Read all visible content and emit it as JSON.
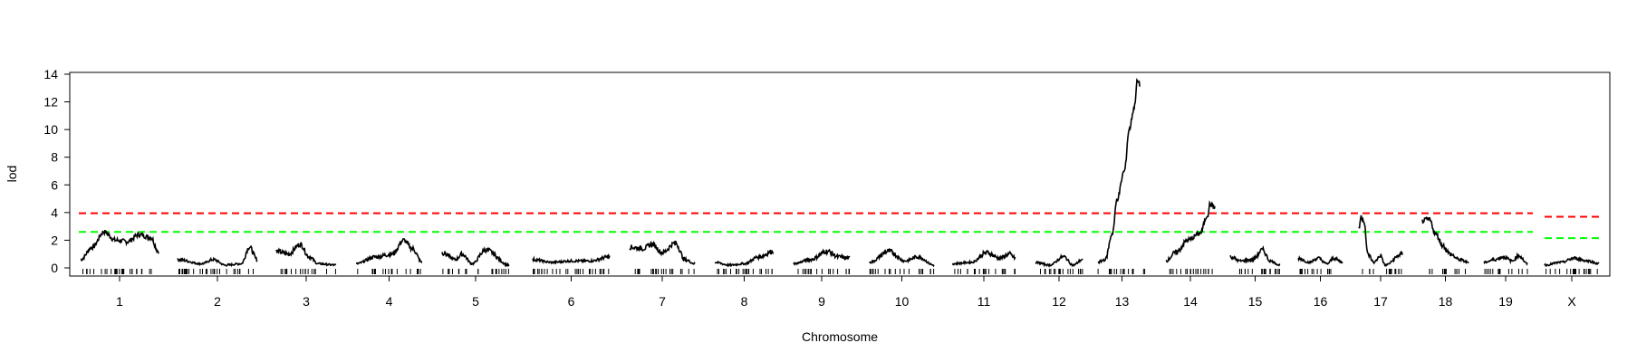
{
  "chart_data": {
    "type": "line",
    "title": "",
    "xlabel": "Chromosome",
    "ylabel": "lod",
    "ylim": [
      0,
      14
    ],
    "y_ticks": [
      0,
      2,
      4,
      6,
      8,
      10,
      12,
      14
    ],
    "grid": false,
    "legend": "none",
    "colors": {
      "lod_curve": "#000000",
      "threshold_high": "#ff0000",
      "threshold_low": "#00ff00"
    },
    "thresholds": [
      {
        "level": "high",
        "autosome": 3.95,
        "x": 3.7
      },
      {
        "level": "low",
        "autosome": 2.6,
        "x": 2.15
      }
    ],
    "chromosomes": [
      {
        "label": "1",
        "profile": [
          [
            0,
            0.6
          ],
          [
            0.15,
            1.5
          ],
          [
            0.3,
            2.6
          ],
          [
            0.45,
            2.0
          ],
          [
            0.6,
            1.9
          ],
          [
            0.75,
            2.4
          ],
          [
            0.9,
            2.2
          ],
          [
            1,
            1.2
          ]
        ],
        "max_lod": 2.7
      },
      {
        "label": "2",
        "profile": [
          [
            0,
            0.6
          ],
          [
            0.3,
            0.3
          ],
          [
            0.45,
            0.6
          ],
          [
            0.6,
            0.2
          ],
          [
            0.8,
            0.3
          ],
          [
            0.9,
            1.5
          ],
          [
            1,
            0.6
          ]
        ],
        "max_lod": 1.5
      },
      {
        "label": "3",
        "profile": [
          [
            0,
            1.2
          ],
          [
            0.2,
            1.0
          ],
          [
            0.4,
            1.7
          ],
          [
            0.55,
            0.8
          ],
          [
            0.7,
            0.3
          ],
          [
            1,
            0.2
          ]
        ],
        "max_lod": 1.7
      },
      {
        "label": "4",
        "profile": [
          [
            0,
            0.3
          ],
          [
            0.3,
            0.8
          ],
          [
            0.55,
            1.0
          ],
          [
            0.72,
            2.0
          ],
          [
            0.85,
            1.4
          ],
          [
            1,
            0.4
          ]
        ],
        "max_lod": 2.0
      },
      {
        "label": "5",
        "profile": [
          [
            0,
            1.1
          ],
          [
            0.2,
            0.6
          ],
          [
            0.3,
            1.0
          ],
          [
            0.45,
            0.3
          ],
          [
            0.65,
            1.3
          ],
          [
            1,
            0.2
          ]
        ],
        "max_lod": 1.3
      },
      {
        "label": "6",
        "profile": [
          [
            0,
            0.6
          ],
          [
            0.25,
            0.4
          ],
          [
            0.5,
            0.5
          ],
          [
            0.75,
            0.5
          ],
          [
            1,
            0.8
          ]
        ],
        "max_lod": 0.8
      },
      {
        "label": "7",
        "profile": [
          [
            0,
            1.5
          ],
          [
            0.2,
            1.4
          ],
          [
            0.35,
            1.7
          ],
          [
            0.5,
            1.1
          ],
          [
            0.7,
            1.8
          ],
          [
            0.85,
            0.6
          ],
          [
            1,
            0.3
          ]
        ],
        "max_lod": 1.8
      },
      {
        "label": "8",
        "profile": [
          [
            0,
            0.4
          ],
          [
            0.25,
            0.2
          ],
          [
            0.5,
            0.3
          ],
          [
            0.75,
            0.8
          ],
          [
            1,
            1.2
          ]
        ],
        "max_lod": 1.2
      },
      {
        "label": "9",
        "profile": [
          [
            0,
            0.3
          ],
          [
            0.3,
            0.6
          ],
          [
            0.6,
            1.2
          ],
          [
            0.8,
            0.8
          ],
          [
            1,
            0.7
          ]
        ],
        "max_lod": 1.2
      },
      {
        "label": "10",
        "profile": [
          [
            0,
            0.4
          ],
          [
            0.3,
            1.2
          ],
          [
            0.55,
            0.5
          ],
          [
            0.75,
            0.8
          ],
          [
            1,
            0.2
          ]
        ],
        "max_lod": 1.2
      },
      {
        "label": "11",
        "profile": [
          [
            0,
            0.3
          ],
          [
            0.3,
            0.4
          ],
          [
            0.55,
            1.1
          ],
          [
            0.75,
            0.7
          ],
          [
            0.9,
            1.0
          ],
          [
            1,
            0.7
          ]
        ],
        "max_lod": 1.1
      },
      {
        "label": "12",
        "profile": [
          [
            0,
            0.4
          ],
          [
            0.3,
            0.2
          ],
          [
            0.6,
            0.8
          ],
          [
            0.8,
            0.2
          ],
          [
            1,
            0.6
          ]
        ],
        "max_lod": 0.8
      },
      {
        "label": "13",
        "profile": [
          [
            0,
            0.4
          ],
          [
            0.15,
            0.6
          ],
          [
            0.3,
            2.5
          ],
          [
            0.4,
            5.0
          ],
          [
            0.55,
            7.0
          ],
          [
            0.65,
            10.0
          ],
          [
            0.75,
            11.5
          ],
          [
            0.82,
            13.5
          ],
          [
            0.88,
            13.2
          ]
        ],
        "max_lod": 13.6
      },
      {
        "label": "14",
        "profile": [
          [
            0,
            0.5
          ],
          [
            0.2,
            1.1
          ],
          [
            0.45,
            2.0
          ],
          [
            0.7,
            2.5
          ],
          [
            0.85,
            3.8
          ],
          [
            0.9,
            4.6
          ],
          [
            1,
            4.4
          ]
        ],
        "max_lod": 4.6
      },
      {
        "label": "15",
        "profile": [
          [
            0,
            0.8
          ],
          [
            0.2,
            0.5
          ],
          [
            0.45,
            0.6
          ],
          [
            0.65,
            1.3
          ],
          [
            0.8,
            0.5
          ],
          [
            1,
            0.2
          ]
        ],
        "max_lod": 1.3
      },
      {
        "label": "16",
        "profile": [
          [
            0,
            0.7
          ],
          [
            0.25,
            0.4
          ],
          [
            0.45,
            0.7
          ],
          [
            0.65,
            0.3
          ],
          [
            0.8,
            0.7
          ],
          [
            1,
            0.4
          ]
        ],
        "max_lod": 0.7
      },
      {
        "label": "17",
        "profile": [
          [
            0,
            2.8
          ],
          [
            0.05,
            3.7
          ],
          [
            0.12,
            3.4
          ],
          [
            0.2,
            1.0
          ],
          [
            0.35,
            0.4
          ],
          [
            0.5,
            0.9
          ],
          [
            0.6,
            0.2
          ],
          [
            1,
            1.0
          ]
        ],
        "max_lod": 3.7
      },
      {
        "label": "18",
        "profile": [
          [
            0,
            3.4
          ],
          [
            0.15,
            3.5
          ],
          [
            0.3,
            2.4
          ],
          [
            0.45,
            1.6
          ],
          [
            0.6,
            1.0
          ],
          [
            0.8,
            0.6
          ],
          [
            1,
            0.4
          ]
        ],
        "max_lod": 3.5
      },
      {
        "label": "19",
        "profile": [
          [
            0,
            0.4
          ],
          [
            0.25,
            0.6
          ],
          [
            0.45,
            0.8
          ],
          [
            0.65,
            0.5
          ],
          [
            0.8,
            0.9
          ],
          [
            1,
            0.3
          ]
        ],
        "max_lod": 0.9
      },
      {
        "label": "X",
        "profile": [
          [
            0,
            0.2
          ],
          [
            0.3,
            0.4
          ],
          [
            0.55,
            0.7
          ],
          [
            0.8,
            0.5
          ],
          [
            1,
            0.3
          ]
        ],
        "max_lod": 0.7
      }
    ]
  }
}
